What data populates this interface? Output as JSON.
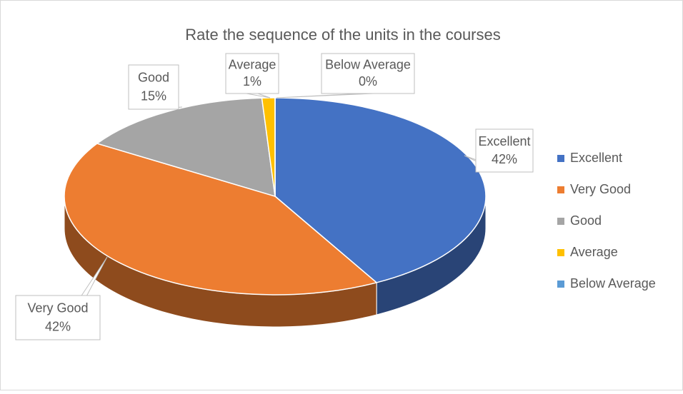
{
  "chart_data": {
    "type": "pie",
    "title": "Rate the sequence of the units in the courses",
    "categories": [
      "Excellent",
      "Very Good",
      "Good",
      "Average",
      "Below Average"
    ],
    "values": [
      42,
      42,
      15,
      1,
      0
    ],
    "value_labels": [
      "42%",
      "42%",
      "15%",
      "1%",
      "0%"
    ],
    "colors": [
      "#4472c4",
      "#ed7d31",
      "#a5a5a5",
      "#ffc000",
      "#5b9bd5"
    ],
    "legend": "right"
  }
}
